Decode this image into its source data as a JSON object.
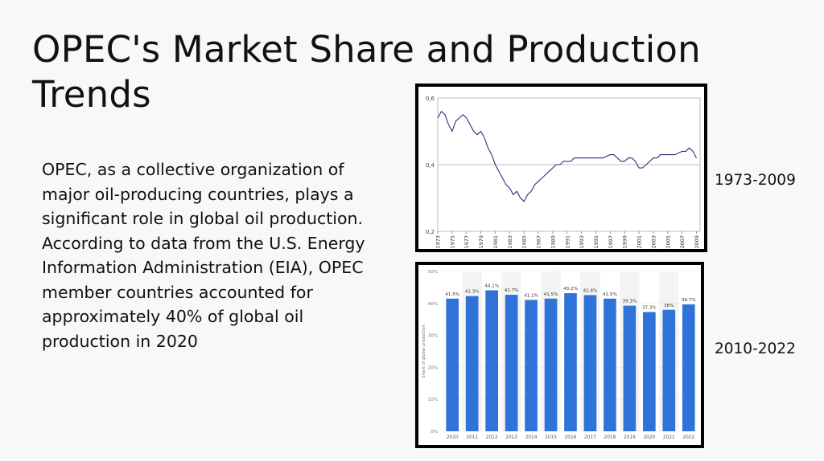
{
  "slide": {
    "title": "OPEC's Market Share and Production Trends",
    "body": "OPEC, as a collective organization of major oil-producing countries, plays a significant role in global oil production. According to data from the U.S. Energy Information Administration (EIA), OPEC member countries accounted for approximately 40% of global oil production in 2020",
    "label_1": "1973-2009",
    "label_2": "2010-2022"
  },
  "chart_data": [
    {
      "type": "line",
      "title": "",
      "xlabel": "",
      "ylabel": "",
      "ylim": [
        0.2,
        0.6
      ],
      "yticks": [
        "0,2",
        "0,4",
        "0,6"
      ],
      "xticks": [
        "1973",
        "1975",
        "1977",
        "1979",
        "1981",
        "1983",
        "1985",
        "1987",
        "1989",
        "1991",
        "1993",
        "1995",
        "1997",
        "1999",
        "2001",
        "2003",
        "2005",
        "2007",
        "2009"
      ],
      "grid": true,
      "series": [
        {
          "x": [
            1973,
            1973.5,
            1974,
            1974.5,
            1975,
            1975.5,
            1976,
            1976.5,
            1977,
            1977.5,
            1978,
            1978.5,
            1979,
            1979.5,
            1980,
            1980.5,
            1981,
            1981.5,
            1982,
            1982.5,
            1983,
            1983.5,
            1984,
            1984.5,
            1985,
            1985.5,
            1986,
            1986.5,
            1987,
            1987.5,
            1988,
            1988.5,
            1989,
            1989.5,
            1990,
            1990.5,
            1991,
            1991.5,
            1992,
            1992.5,
            1993,
            1993.5,
            1994,
            1994.5,
            1995,
            1995.5,
            1996,
            1996.5,
            1997,
            1997.5,
            1998,
            1998.5,
            1999,
            1999.5,
            2000,
            2000.5,
            2001,
            2001.5,
            2002,
            2002.5,
            2003,
            2003.5,
            2004,
            2004.5,
            2005,
            2005.5,
            2006,
            2006.5,
            2007,
            2007.5,
            2008,
            2008.5,
            2009
          ],
          "values": [
            0.54,
            0.56,
            0.55,
            0.52,
            0.5,
            0.53,
            0.54,
            0.55,
            0.54,
            0.52,
            0.5,
            0.49,
            0.5,
            0.48,
            0.45,
            0.43,
            0.4,
            0.38,
            0.36,
            0.34,
            0.33,
            0.31,
            0.32,
            0.3,
            0.29,
            0.31,
            0.32,
            0.34,
            0.35,
            0.36,
            0.37,
            0.38,
            0.39,
            0.4,
            0.4,
            0.41,
            0.41,
            0.41,
            0.42,
            0.42,
            0.42,
            0.42,
            0.42,
            0.42,
            0.42,
            0.42,
            0.42,
            0.425,
            0.43,
            0.43,
            0.42,
            0.41,
            0.41,
            0.42,
            0.42,
            0.41,
            0.39,
            0.39,
            0.4,
            0.41,
            0.42,
            0.42,
            0.43,
            0.43,
            0.43,
            0.43,
            0.43,
            0.435,
            0.44,
            0.44,
            0.45,
            0.44,
            0.42
          ]
        }
      ]
    },
    {
      "type": "bar",
      "title": "",
      "xlabel": "",
      "ylabel": "Share of global production",
      "ylim": [
        0,
        50
      ],
      "yticks": [
        "0%",
        "10%",
        "20%",
        "30%",
        "40%",
        "50%"
      ],
      "categories": [
        "2010",
        "2011",
        "2012",
        "2013",
        "2014",
        "2015",
        "2016",
        "2017",
        "2018",
        "2019",
        "2020",
        "2021",
        "2022"
      ],
      "values": [
        41.5,
        42.3,
        44.1,
        42.7,
        41.1,
        41.5,
        43.2,
        42.6,
        41.5,
        39.3,
        37.3,
        38,
        39.7
      ],
      "data_labels": [
        "41.5%",
        "42.3%",
        "44.1%",
        "42.7%",
        "41.1%",
        "41.5%",
        "43.2%",
        "42.6%",
        "41.5%",
        "39.3%",
        "37.3%",
        "38%",
        "39.7%"
      ],
      "bar_color": "#2f73d8"
    }
  ]
}
